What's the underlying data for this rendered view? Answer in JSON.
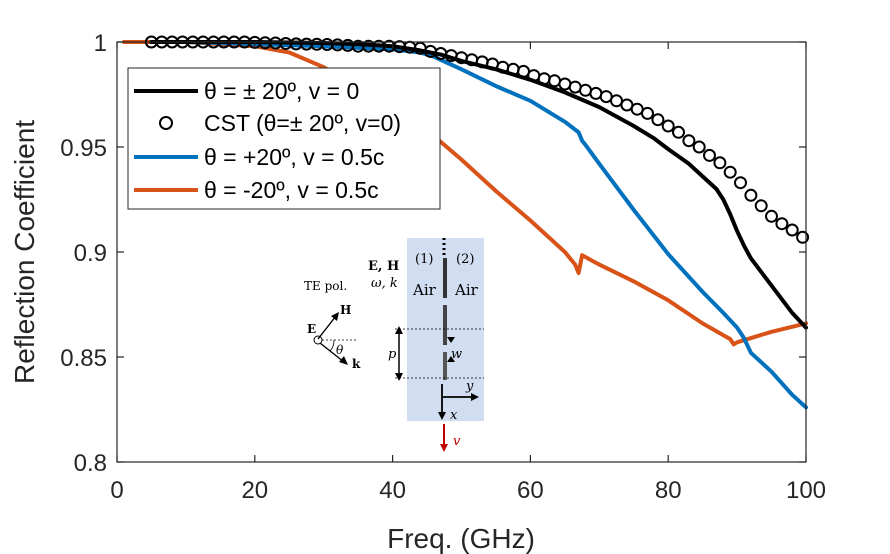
{
  "chart_data": {
    "type": "line",
    "xlabel": "Freq. (GHz)",
    "ylabel": "Reflection Coefficient",
    "xlim": [
      0,
      100
    ],
    "ylim": [
      0.8,
      1.0
    ],
    "xticks": [
      "0",
      "20",
      "40",
      "60",
      "80",
      "100"
    ],
    "yticks": [
      "0.8",
      "0.85",
      "0.9",
      "0.95",
      "1"
    ],
    "grid": false,
    "legend_placement": "top-left",
    "series": [
      {
        "name": "θ = ± 20º, v = 0",
        "color": "#000000",
        "style": "line",
        "x": [
          5,
          10,
          20,
          30,
          35,
          40,
          44,
          47,
          50,
          55,
          60,
          65,
          70,
          75,
          78,
          80,
          83,
          85,
          87,
          88,
          89,
          90,
          91,
          92,
          95,
          98,
          100
        ],
        "y": [
          1.0,
          1.0,
          1.0,
          0.9995,
          0.999,
          0.998,
          0.996,
          0.994,
          0.991,
          0.987,
          0.982,
          0.976,
          0.969,
          0.96,
          0.954,
          0.949,
          0.942,
          0.936,
          0.93,
          0.925,
          0.918,
          0.91,
          0.903,
          0.897,
          0.884,
          0.871,
          0.864
        ]
      },
      {
        "name": "CST (θ=± 20º, v=0)",
        "color": "#000000",
        "style": "markers",
        "x": [
          5,
          6.5,
          8,
          9.5,
          11,
          12.5,
          14,
          15.5,
          17,
          18.5,
          20,
          21.5,
          23,
          24.5,
          26,
          27.5,
          29,
          30.5,
          32,
          33.5,
          35,
          36.5,
          38,
          39.5,
          41,
          42.5,
          44,
          45.5,
          47,
          48.5,
          50,
          51.5,
          53,
          54.5,
          56,
          57.5,
          59,
          60.5,
          62,
          63.5,
          65,
          66.5,
          68,
          69.5,
          71,
          72.5,
          74,
          75.5,
          77,
          78.5,
          80,
          81.5,
          83,
          84.5,
          86,
          87.5,
          89,
          90.5,
          92,
          93.5,
          95,
          96.5,
          98,
          99.5
        ],
        "y": [
          1.0,
          1.0,
          1.0,
          1.0,
          1.0,
          1.0,
          1.0,
          1.0,
          1.0,
          1.0,
          0.9998,
          0.9996,
          0.9995,
          0.9993,
          0.9991,
          0.999,
          0.9989,
          0.9988,
          0.9986,
          0.9984,
          0.998,
          0.998,
          0.998,
          0.998,
          0.9978,
          0.9975,
          0.997,
          0.9955,
          0.9945,
          0.9935,
          0.9925,
          0.9915,
          0.9905,
          0.9895,
          0.988,
          0.987,
          0.986,
          0.984,
          0.9825,
          0.9815,
          0.98,
          0.9785,
          0.977,
          0.9755,
          0.974,
          0.972,
          0.97,
          0.968,
          0.966,
          0.963,
          0.96,
          0.957,
          0.953,
          0.95,
          0.946,
          0.9425,
          0.938,
          0.933,
          0.927,
          0.922,
          0.917,
          0.9135,
          0.9105,
          0.907
        ]
      },
      {
        "name": "θ = +20º, v = 0.5c",
        "color": "#0072bd",
        "style": "line",
        "x": [
          5,
          10,
          20,
          30,
          40,
          44,
          46,
          48,
          50,
          55,
          60,
          65,
          67,
          67.5,
          68,
          70,
          75,
          80,
          85,
          88,
          90,
          91,
          92,
          95,
          98,
          100
        ],
        "y": [
          1.0,
          1.0,
          0.999,
          0.998,
          0.9965,
          0.995,
          0.993,
          0.99,
          0.987,
          0.979,
          0.972,
          0.962,
          0.957,
          0.953,
          0.951,
          0.942,
          0.92,
          0.899,
          0.881,
          0.871,
          0.864,
          0.859,
          0.852,
          0.843,
          0.832,
          0.826
        ]
      },
      {
        "name": "θ = -20º, v = 0.5c",
        "color": "#d95319",
        "style": "line",
        "x": [
          1,
          5,
          10,
          20,
          25,
          30,
          35,
          40,
          45,
          50,
          55,
          60,
          65,
          66.5,
          67,
          67.5,
          70,
          75,
          80,
          85,
          89,
          89.5,
          90,
          95,
          100
        ],
        "y": [
          1.0,
          1.0,
          1.0,
          0.998,
          0.995,
          0.988,
          0.979,
          0.969,
          0.958,
          0.944,
          0.929,
          0.915,
          0.9,
          0.894,
          0.89,
          0.8985,
          0.894,
          0.886,
          0.877,
          0.866,
          0.8585,
          0.856,
          0.857,
          0.862,
          0.866
        ]
      }
    ],
    "inset_labels": {
      "fields": "E, H",
      "omega_k": "ω, k",
      "te_pol": "TE pol.",
      "region1": "(1)",
      "region2": "(2)",
      "air1": "Air",
      "air2": "Air",
      "E": "E",
      "H": "H",
      "theta": "θ",
      "k": "k",
      "p": "p",
      "w": "w",
      "y": "y",
      "x": "x",
      "v": "v"
    }
  }
}
